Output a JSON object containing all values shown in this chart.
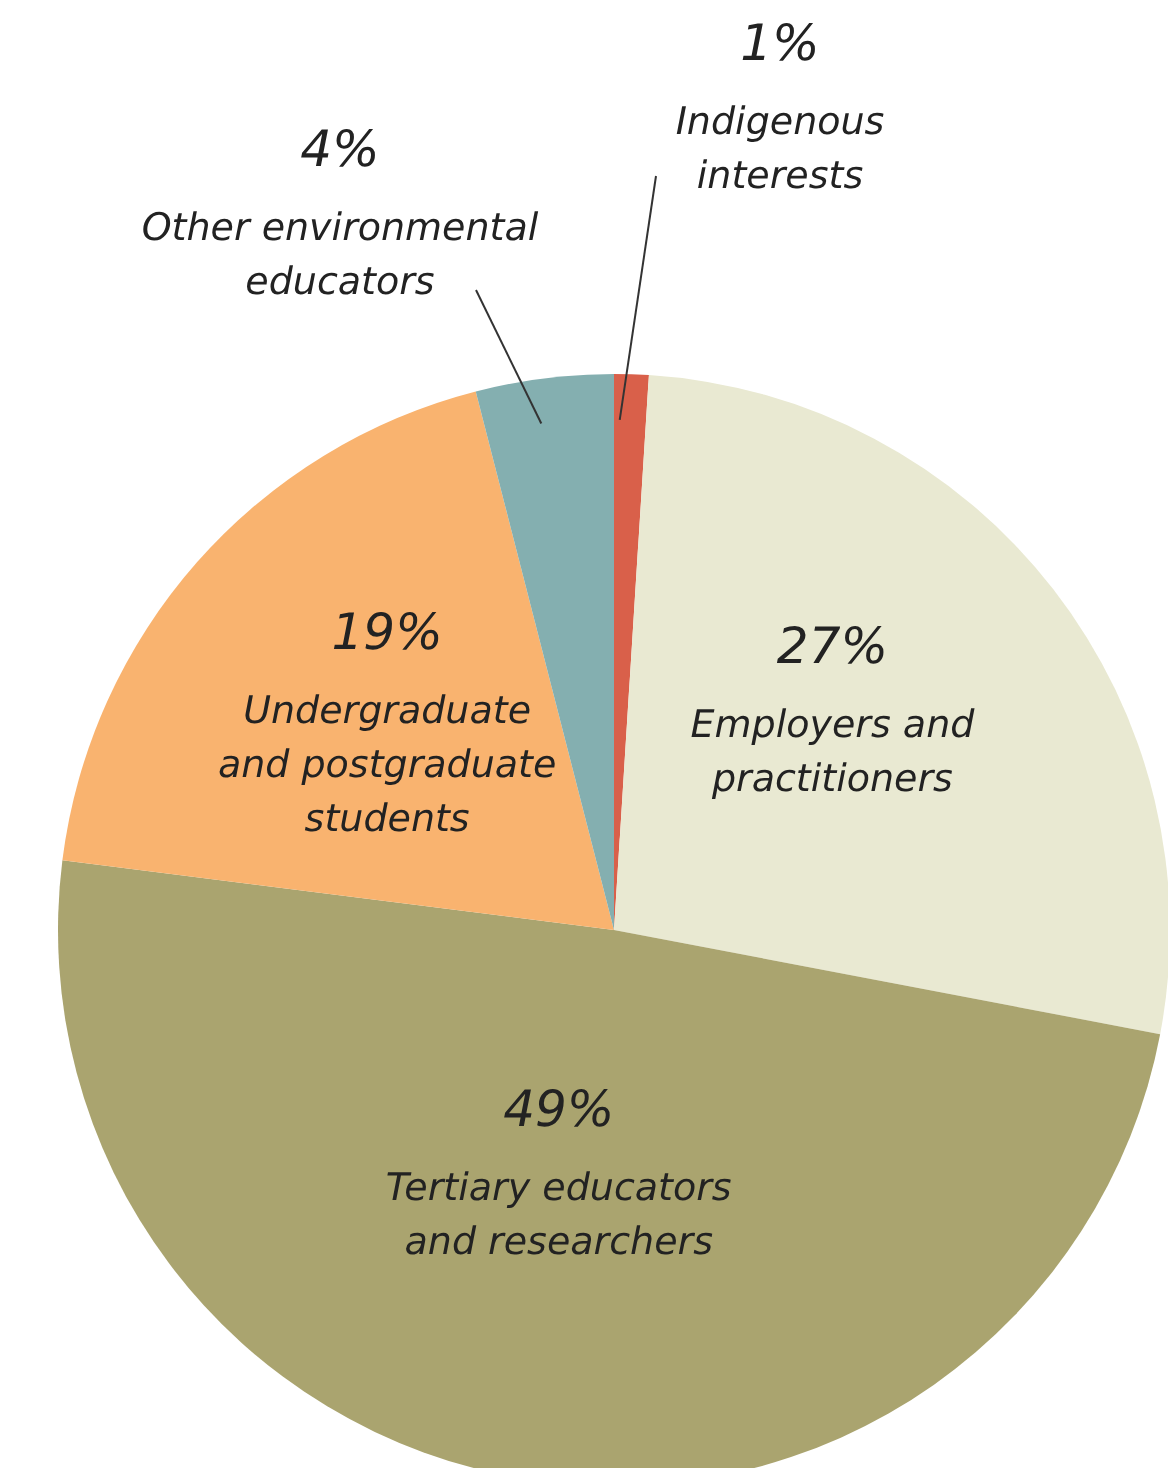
{
  "chart_data": {
    "type": "pie",
    "categories": [
      "Indigenous interests",
      "Employers and practitioners",
      "Tertiary educators and researchers",
      "Undergraduate and postgraduate students",
      "Other environmental educators"
    ],
    "values": [
      1,
      27,
      49,
      19,
      4
    ],
    "colors": [
      "#d9604a",
      "#e9e9d2",
      "#aaa46f",
      "#f9b36f",
      "#84afb0"
    ],
    "value_labels": [
      "1%",
      "27%",
      "49%",
      "19%",
      "4%"
    ]
  }
}
